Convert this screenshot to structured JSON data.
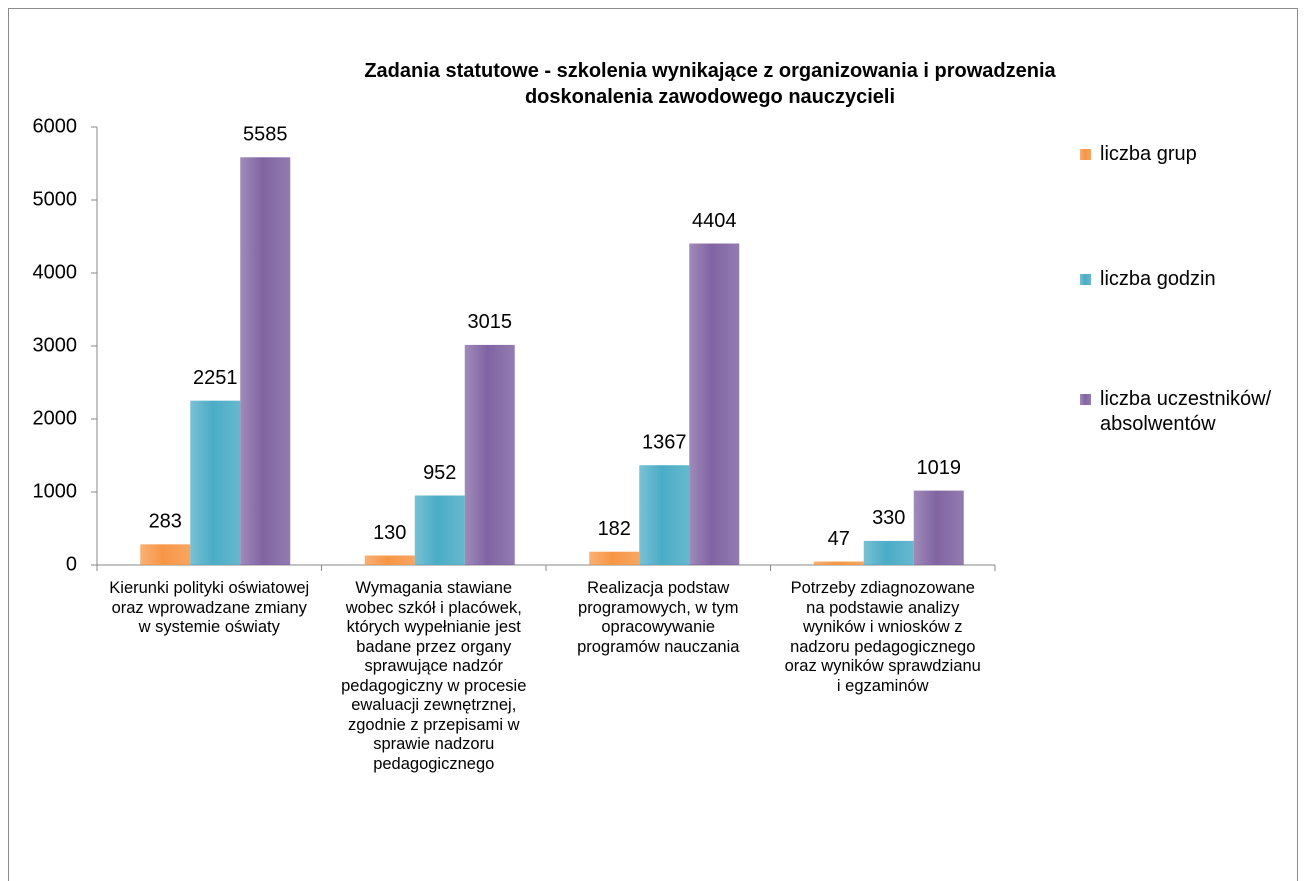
{
  "chart_data": {
    "type": "bar",
    "title": "Zadania statutowe - szkolenia wynikające z organizowania i prowadzenia doskonalenia zawodowego nauczycieli",
    "categories": [
      "Kierunki polityki oświatowej oraz wprowadzane zmiany w systemie oświaty",
      "Wymagania stawiane wobec szkół i placówek, których wypełnianie jest badane przez organy sprawujące nadzór pedagogiczny w procesie ewaluacji zewnętrznej, zgodnie z przepisami w sprawie nadzoru pedagogicznego",
      "Realizacja podstaw programowych, w tym opracowywanie programów nauczania",
      "Potrzeby zdiagnozowane na podstawie analizy wyników i wniosków z nadzoru pedagogicznego oraz wyników sprawdzianu i egzaminów"
    ],
    "series": [
      {
        "name": "liczba grup",
        "color": "#f79646",
        "values": [
          283,
          130,
          182,
          47
        ]
      },
      {
        "name": "liczba godzin",
        "color": "#4bacc6",
        "values": [
          2251,
          952,
          1367,
          330
        ]
      },
      {
        "name": "liczba uczestników/ absolwentów",
        "color": "#8064a2",
        "values": [
          5585,
          3015,
          4404,
          1019
        ]
      }
    ],
    "ylim": [
      0,
      6000
    ],
    "yticks": [
      0,
      1000,
      2000,
      3000,
      4000,
      5000,
      6000
    ],
    "legend": "right"
  }
}
